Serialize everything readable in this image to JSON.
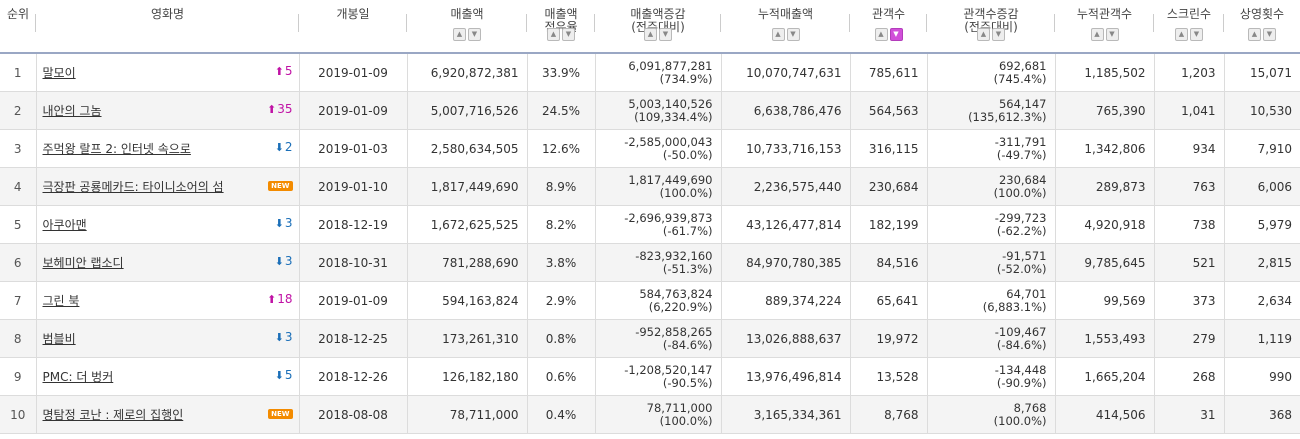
{
  "header": {
    "rank": "순위",
    "title": "영화명",
    "release": "개봉일",
    "sales": "매출액",
    "share": "매출액\n점유율",
    "sales_change": "매출액증감\n(전주대비)",
    "cum_sales": "누적매출액",
    "audience": "관객수",
    "aud_change": "관객수증감\n(전주대비)",
    "cum_audience": "누적관객수",
    "screens": "스크린수",
    "shows": "상영횟수"
  },
  "rows": [
    {
      "rank": "1",
      "title": "말모이",
      "change": {
        "dir": "up",
        "value": "5"
      },
      "release": "2019-01-09",
      "sales": "6,920,872,381",
      "share": "33.9%",
      "sales_change": "6,091,877,281",
      "sales_change_pct": "(734.9%)",
      "cum_sales": "10,070,747,631",
      "audience": "785,611",
      "aud_change": "692,681",
      "aud_change_pct": "(745.4%)",
      "cum_audience": "1,185,502",
      "screens": "1,203",
      "shows": "15,071"
    },
    {
      "rank": "2",
      "title": "내안의 그놈",
      "change": {
        "dir": "up",
        "value": "35"
      },
      "release": "2019-01-09",
      "sales": "5,007,716,526",
      "share": "24.5%",
      "sales_change": "5,003,140,526",
      "sales_change_pct": "(109,334.4%)",
      "cum_sales": "6,638,786,476",
      "audience": "564,563",
      "aud_change": "564,147",
      "aud_change_pct": "(135,612.3%)",
      "cum_audience": "765,390",
      "screens": "1,041",
      "shows": "10,530"
    },
    {
      "rank": "3",
      "title": "주먹왕 랄프 2: 인터넷 속으로",
      "change": {
        "dir": "down",
        "value": "2"
      },
      "release": "2019-01-03",
      "sales": "2,580,634,505",
      "share": "12.6%",
      "sales_change": "-2,585,000,043",
      "sales_change_pct": "(-50.0%)",
      "cum_sales": "10,733,716,153",
      "audience": "316,115",
      "aud_change": "-311,791",
      "aud_change_pct": "(-49.7%)",
      "cum_audience": "1,342,806",
      "screens": "934",
      "shows": "7,910"
    },
    {
      "rank": "4",
      "title": "극장판 공룡메카드: 타이니소어의 섬",
      "change": {
        "dir": "new",
        "value": "NEW"
      },
      "release": "2019-01-10",
      "sales": "1,817,449,690",
      "share": "8.9%",
      "sales_change": "1,817,449,690",
      "sales_change_pct": "(100.0%)",
      "cum_sales": "2,236,575,440",
      "audience": "230,684",
      "aud_change": "230,684",
      "aud_change_pct": "(100.0%)",
      "cum_audience": "289,873",
      "screens": "763",
      "shows": "6,006"
    },
    {
      "rank": "5",
      "title": "아쿠아맨",
      "change": {
        "dir": "down",
        "value": "3"
      },
      "release": "2018-12-19",
      "sales": "1,672,625,525",
      "share": "8.2%",
      "sales_change": "-2,696,939,873",
      "sales_change_pct": "(-61.7%)",
      "cum_sales": "43,126,477,814",
      "audience": "182,199",
      "aud_change": "-299,723",
      "aud_change_pct": "(-62.2%)",
      "cum_audience": "4,920,918",
      "screens": "738",
      "shows": "5,979"
    },
    {
      "rank": "6",
      "title": "보헤미안 랩소디",
      "change": {
        "dir": "down",
        "value": "3"
      },
      "release": "2018-10-31",
      "sales": "781,288,690",
      "share": "3.8%",
      "sales_change": "-823,932,160",
      "sales_change_pct": "(-51.3%)",
      "cum_sales": "84,970,780,385",
      "audience": "84,516",
      "aud_change": "-91,571",
      "aud_change_pct": "(-52.0%)",
      "cum_audience": "9,785,645",
      "screens": "521",
      "shows": "2,815"
    },
    {
      "rank": "7",
      "title": "그린 북",
      "change": {
        "dir": "up",
        "value": "18"
      },
      "release": "2019-01-09",
      "sales": "594,163,824",
      "share": "2.9%",
      "sales_change": "584,763,824",
      "sales_change_pct": "(6,220.9%)",
      "cum_sales": "889,374,224",
      "audience": "65,641",
      "aud_change": "64,701",
      "aud_change_pct": "(6,883.1%)",
      "cum_audience": "99,569",
      "screens": "373",
      "shows": "2,634"
    },
    {
      "rank": "8",
      "title": "범블비",
      "change": {
        "dir": "down",
        "value": "3"
      },
      "release": "2018-12-25",
      "sales": "173,261,310",
      "share": "0.8%",
      "sales_change": "-952,858,265",
      "sales_change_pct": "(-84.6%)",
      "cum_sales": "13,026,888,637",
      "audience": "19,972",
      "aud_change": "-109,467",
      "aud_change_pct": "(-84.6%)",
      "cum_audience": "1,553,493",
      "screens": "279",
      "shows": "1,119"
    },
    {
      "rank": "9",
      "title": "PMC: 더 벙커",
      "change": {
        "dir": "down",
        "value": "5"
      },
      "release": "2018-12-26",
      "sales": "126,182,180",
      "share": "0.6%",
      "sales_change": "-1,208,520,147",
      "sales_change_pct": "(-90.5%)",
      "cum_sales": "13,976,496,814",
      "audience": "13,528",
      "aud_change": "-134,448",
      "aud_change_pct": "(-90.9%)",
      "cum_audience": "1,665,204",
      "screens": "268",
      "shows": "990"
    },
    {
      "rank": "10",
      "title": "명탐정 코난 : 제로의 집행인",
      "change": {
        "dir": "new",
        "value": "NEW"
      },
      "release": "2018-08-08",
      "sales": "78,711,000",
      "share": "0.4%",
      "sales_change": "78,711,000",
      "sales_change_pct": "(100.0%)",
      "cum_sales": "3,165,334,361",
      "audience": "8,768",
      "aud_change": "8,768",
      "aud_change_pct": "(100.0%)",
      "cum_audience": "414,506",
      "screens": "31",
      "shows": "368"
    }
  ],
  "colors": {
    "up": "#c012a5",
    "down": "#1b6fb8",
    "new_badge": "#f38b00",
    "active_sort": "#d14fd9"
  }
}
